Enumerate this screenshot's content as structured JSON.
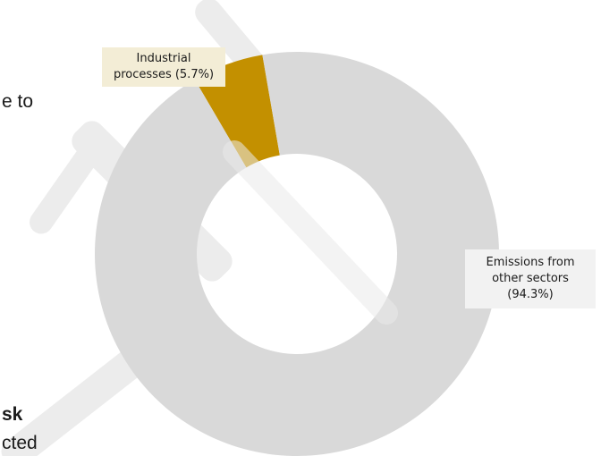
{
  "colors": {
    "industrial": "#c39000",
    "other": "#d9d9d9",
    "callout_industrial_bg": "#f3edd6",
    "callout_other_bg": "#f2f2f2",
    "watermark": "#ececec"
  },
  "body_fragments": {
    "line1": "e to",
    "line2": "sk",
    "line3": "cted"
  },
  "chart_data": {
    "type": "pie",
    "variant": "donut",
    "slices": [
      {
        "label_lines": [
          "Industrial",
          "processes (5.7%)"
        ],
        "value": 5.7,
        "color": "#c39000"
      },
      {
        "label_lines": [
          "Emissions from",
          "other sectors",
          "(94.3%)"
        ],
        "value": 94.3,
        "color": "#d9d9d9"
      }
    ],
    "legend": "none"
  }
}
